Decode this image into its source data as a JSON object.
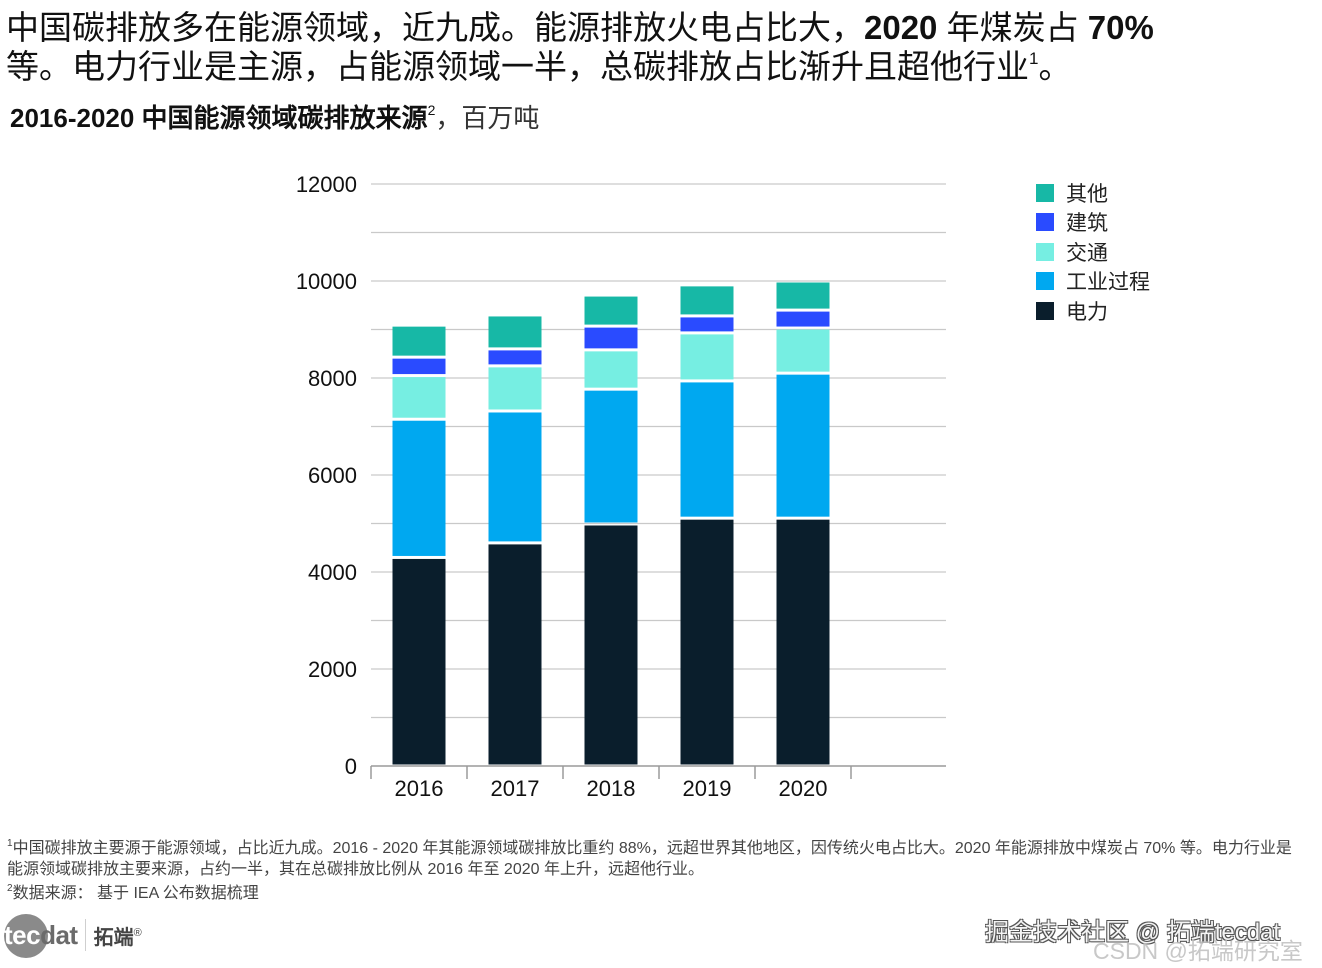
{
  "headline": {
    "line1_a": "中国碳排放多在能源领域，近九成。能源排放火电占比大，",
    "line1_b": "2020",
    "line1_c": " 年煤炭占 ",
    "line1_d": "70%",
    "line2_a": "等。电力行业是主源，占能源领域一半，总碳排放占比渐升且超他行业",
    "line2_sup": "1",
    "line2_b": "。"
  },
  "subtitle": {
    "bold": "2016-2020 中国能源领域碳排放来源",
    "sup": "2",
    "unit": "，百万吨"
  },
  "chart_data": {
    "type": "bar",
    "stacked": true,
    "title": "2016-2020 中国能源领域碳排放来源，百万吨",
    "xlabel": "",
    "ylabel": "",
    "categories": [
      "2016",
      "2017",
      "2018",
      "2019",
      "2020"
    ],
    "ylim": [
      0,
      12000
    ],
    "yticks": [
      0,
      2000,
      4000,
      6000,
      8000,
      10000,
      12000
    ],
    "ytick_labels": [
      "0",
      "2000",
      "4000",
      "6000",
      "8000",
      "10000",
      "12000"
    ],
    "grid": true,
    "grid_step": 1000,
    "legend_position": "right",
    "series": [
      {
        "name": "电力",
        "color": "#0a1e2c",
        "values": [
          4300,
          4600,
          4990,
          5110,
          5110
        ]
      },
      {
        "name": "工业过程",
        "color": "#00a8f0",
        "values": [
          2850,
          2720,
          2780,
          2830,
          2990
        ]
      },
      {
        "name": "交通",
        "color": "#76eee2",
        "values": [
          900,
          930,
          810,
          990,
          930
        ]
      },
      {
        "name": "建筑",
        "color": "#2a4bff",
        "values": [
          380,
          350,
          490,
          350,
          370
        ]
      },
      {
        "name": "其他",
        "color": "#17b8a6",
        "values": [
          660,
          700,
          640,
          640,
          600
        ]
      }
    ]
  },
  "legend": [
    {
      "label": "其他",
      "color": "#17b8a6"
    },
    {
      "label": "建筑",
      "color": "#2a4bff"
    },
    {
      "label": "交通",
      "color": "#76eee2"
    },
    {
      "label": "工业过程",
      "color": "#00a8f0"
    },
    {
      "label": "电力",
      "color": "#0a1e2c"
    }
  ],
  "footnotes": {
    "fn1_sup": "1",
    "fn1_text": "中国碳排放主要源于能源领域，占比近九成。2016 - 2020 年其能源领域碳排放比重约 88%，远超世界其他地区，因传统火电占比大。2020 年能源排放中煤炭占 70% 等。电力行业是能源领域碳排放主要来源，占约一半，其在总碳排放比例从 2016 年至 2020 年上升，远超他行业。",
    "fn2_sup": "2",
    "fn2_text": "数据来源： 基于 IEA 公布数据梳理"
  },
  "logo": {
    "tec": "tec",
    "dat": "dat",
    "cn": "拓端",
    "reg": "®"
  },
  "watermark": {
    "line1": "掘金技术社区 @ 拓端tecdat",
    "line2": "CSDN @拓端研究室"
  }
}
